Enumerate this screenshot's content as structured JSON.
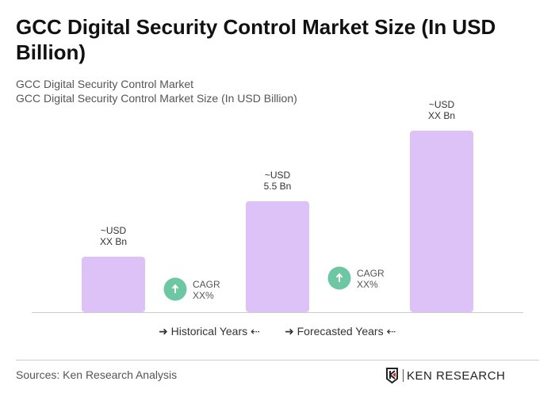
{
  "title": "GCC Digital Security Control Market Size (In USD Billion)",
  "subtitle1": "GCC Digital Security Control Market",
  "subtitle2": "GCC Digital Security Control Market Size (In USD Billion)",
  "chart_data": {
    "type": "bar",
    "categories": [
      "",
      "",
      ""
    ],
    "values": [
      2.75,
      5.5,
      9.0
    ],
    "data_labels": [
      [
        "~USD",
        "XX Bn"
      ],
      [
        "~USD",
        "5.5 Bn"
      ],
      [
        "~USD",
        "XX Bn"
      ]
    ],
    "bar_color": "#dcc2f7",
    "cagr": [
      {
        "label": "CAGR",
        "value": "XX%"
      },
      {
        "label": "CAGR",
        "value": "XX%"
      }
    ],
    "cagr_color": "#6cc7a2",
    "grid": false
  },
  "legend": {
    "historical": "Historical Years",
    "forecasted": "Forecasted Years"
  },
  "source": "Sources: Ken Research Analysis",
  "logo": "KEN RESEARCH"
}
